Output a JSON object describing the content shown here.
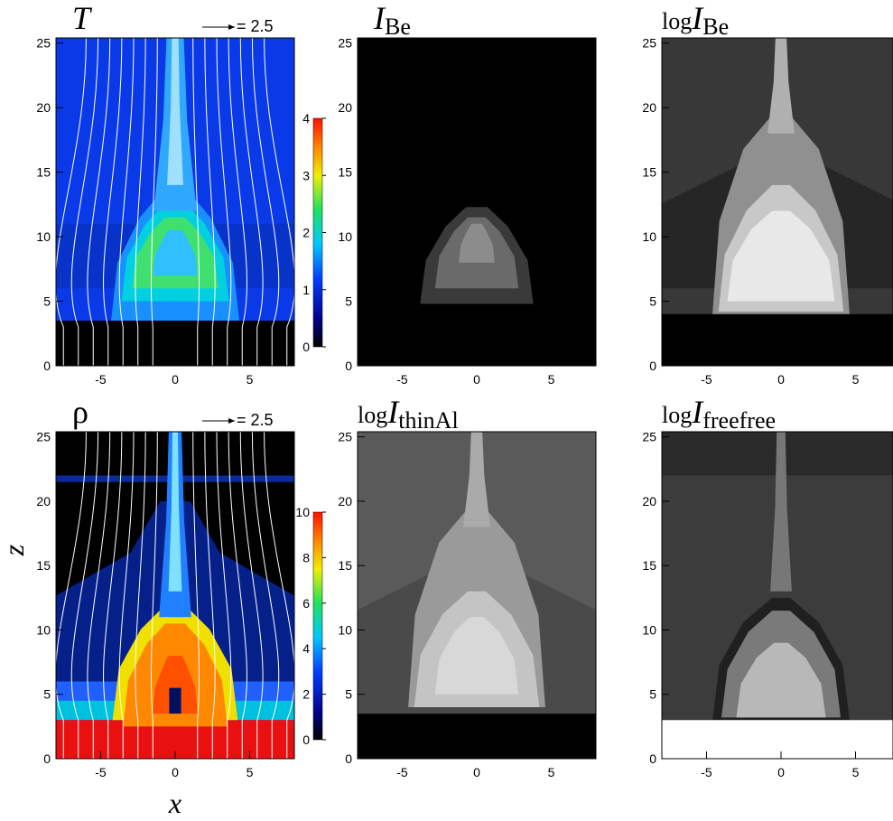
{
  "chart_data": [
    {
      "type": "contour",
      "colormap": "jet",
      "title": {
        "symbol": "T"
      },
      "vector_key": "= 2.5",
      "xlim": [
        -8,
        8
      ],
      "ylim": [
        0,
        25.4
      ],
      "xticks": [
        -5,
        0,
        5
      ],
      "yticks": [
        0,
        5,
        10,
        15,
        20,
        25
      ],
      "colorbar": {
        "lim": [
          0,
          4
        ],
        "ticks": [
          0,
          1,
          2,
          3,
          4
        ]
      }
    },
    {
      "type": "contour",
      "colormap": "gray",
      "title": {
        "symbol": "I",
        "subscript": "Be"
      },
      "xlim": [
        -8,
        8
      ],
      "ylim": [
        0,
        25.4
      ],
      "xticks": [
        -5,
        0,
        5
      ],
      "yticks": [
        0,
        5,
        10,
        15,
        20,
        25
      ]
    },
    {
      "type": "contour",
      "colormap": "gray",
      "title": {
        "prefix": "log",
        "symbol": "I",
        "subscript": "Be"
      },
      "xlim": [
        -8,
        8
      ],
      "ylim": [
        0,
        25.4
      ],
      "xticks": [
        -5,
        0,
        5
      ],
      "yticks": [
        0,
        5,
        10,
        15,
        20,
        25
      ]
    },
    {
      "type": "contour",
      "colormap": "jet",
      "title": {
        "symbol": "ρ"
      },
      "vector_key": "= 2.5",
      "xlabel": "x",
      "ylabel": "z",
      "xlim": [
        -8,
        8
      ],
      "ylim": [
        0,
        25.4
      ],
      "xticks": [
        -5,
        0,
        5
      ],
      "yticks": [
        0,
        5,
        10,
        15,
        20,
        25
      ],
      "colorbar": {
        "lim": [
          0,
          10
        ],
        "ticks": [
          0,
          2,
          4,
          6,
          8,
          10
        ]
      }
    },
    {
      "type": "contour",
      "colormap": "gray",
      "title": {
        "prefix": "log",
        "symbol": "I",
        "subscript": "thinAl"
      },
      "xlim": [
        -8,
        8
      ],
      "ylim": [
        0,
        25.4
      ],
      "xticks": [
        -5,
        0,
        5
      ],
      "yticks": [
        0,
        5,
        10,
        15,
        20,
        25
      ]
    },
    {
      "type": "contour",
      "colormap": "gray",
      "title": {
        "prefix": "log",
        "symbol": "I",
        "subscript": "freefree"
      },
      "xlim": [
        -8,
        8
      ],
      "ylim": [
        0,
        25.4
      ],
      "xticks": [
        -5,
        0,
        5
      ],
      "yticks": [
        0,
        5,
        10,
        15,
        20,
        25
      ]
    }
  ]
}
